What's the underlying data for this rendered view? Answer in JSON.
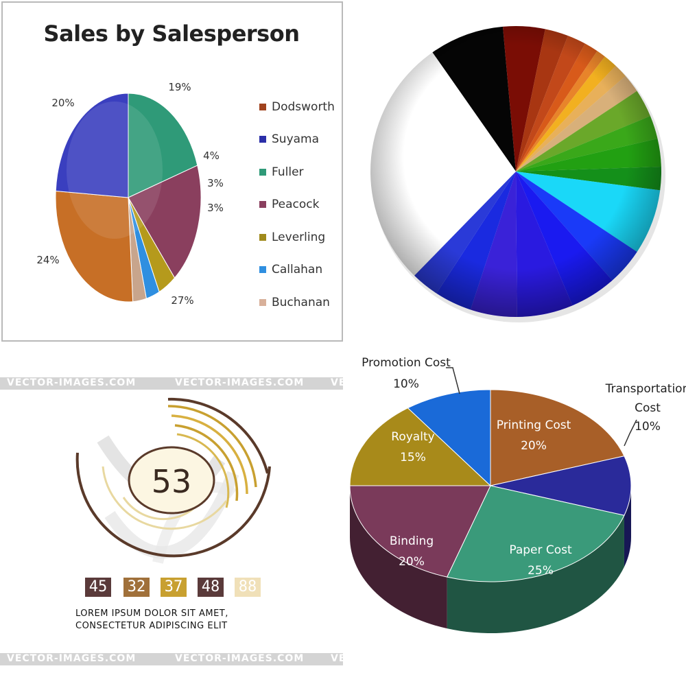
{
  "chart_data": [
    {
      "type": "pie",
      "title": "Sales by Salesperson",
      "categories": [
        "Fuller",
        "Peacock",
        "Leverling",
        "Callahan",
        "Buchanan",
        "Dodsworth",
        "Suyama"
      ],
      "values": [
        20,
        19,
        4,
        3,
        3,
        27,
        24
      ],
      "value_labels": [
        "20%",
        "19%",
        "4%",
        "3%",
        "3%",
        "27%",
        "24%"
      ],
      "colors": [
        "#2f9a78",
        "#8a3f5e",
        "#b59a1c",
        "#2f8fe0",
        "#c8a58c",
        "#c76f26",
        "#3a3fbf"
      ],
      "legend": {
        "placement": "right",
        "entries": [
          "Dodsworth",
          "Suyama",
          "Fuller",
          "Peacock",
          "Leverling",
          "Callahan",
          "Buchanan"
        ],
        "colors": [
          "#a0421d",
          "#2b2fa8",
          "#2f9a78",
          "#8a3f5e",
          "#a08a1c",
          "#2f8fe0",
          "#d8b09a"
        ]
      }
    },
    {
      "type": "pie",
      "title": "",
      "values": [
        8,
        4.5,
        2.5,
        2,
        1.5,
        1,
        1.5,
        1.5,
        2,
        3,
        2.5,
        3,
        2.5,
        7,
        4,
        5,
        6,
        5,
        4,
        3,
        27
      ],
      "colors": [
        "#050505",
        "#7a0d05",
        "#a83612",
        "#c2481a",
        "#d85a1a",
        "#e8842a",
        "#f2b020",
        "#e8b05a",
        "#d8b07a",
        "#6aa82a",
        "#3aa81a",
        "#22a012",
        "#14901a",
        "#1ad8f8",
        "#1a3af8",
        "#1a1af0",
        "#2a1ae0",
        "#3a22d8",
        "#1a2ae0",
        "#2a3ad8",
        "#ffffff"
      ]
    },
    {
      "type": "pie",
      "title": "",
      "categories": [
        "Printing Cost",
        "Transportation Cost",
        "Paper Cost",
        "Binding",
        "Royalty",
        "Promotion Cost"
      ],
      "values": [
        20,
        10,
        25,
        20,
        15,
        10
      ],
      "value_labels": [
        "20%",
        "10%",
        "25%",
        "20%",
        "15%",
        "10%"
      ],
      "colors": [
        "#a85f28",
        "#2a2a9a",
        "#3a9a7a",
        "#7a3a5a",
        "#a88a1a",
        "#1a6ad8"
      ]
    }
  ],
  "infographic": {
    "center_number": "53",
    "numbers": [
      "45",
      "32",
      "37",
      "48",
      "88"
    ],
    "number_colors": [
      "#5a3a3a",
      "#a0703a",
      "#c8a030",
      "#5a3a3a",
      "#f0e0b8"
    ],
    "caption_line1": "LOREM   IPSUM   DOLOR   SIT   AMET,",
    "caption_line2": "CONSECTETUR ADIPISCING ELIT",
    "watermark": "VECTOR-IMAGES.COM"
  }
}
